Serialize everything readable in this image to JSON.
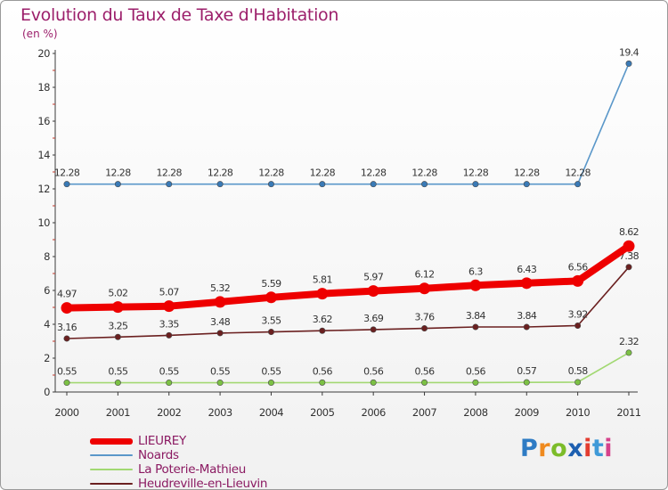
{
  "title": "Evolution du Taux de Taxe d'Habitation",
  "subtitle": "(en %)",
  "logo": "Proxiti",
  "chart_data": {
    "type": "line",
    "title": "Evolution du Taux de Taxe d'Habitation",
    "ylabel": "(en %)",
    "xlabel": "",
    "ylim": [
      0,
      20
    ],
    "yticks": [
      "0",
      "2",
      "4",
      "6",
      "8",
      "10",
      "12",
      "14",
      "16",
      "18",
      "20"
    ],
    "categories": [
      "2000",
      "2001",
      "2002",
      "2003",
      "2004",
      "2005",
      "2006",
      "2007",
      "2008",
      "2009",
      "2010",
      "2011"
    ],
    "grid": false,
    "legend_position": "bottom-left",
    "series": [
      {
        "name": "Noards",
        "color": "#5a97c9",
        "marker": "#3a7ab6",
        "values": [
          12.28,
          12.28,
          12.28,
          12.28,
          12.28,
          12.28,
          12.28,
          12.28,
          12.28,
          12.28,
          12.28,
          19.4
        ],
        "labels": [
          "12.28",
          "12.28",
          "12.28",
          "12.28",
          "12.28",
          "12.28",
          "12.28",
          "12.28",
          "12.28",
          "12.28",
          "12.28",
          "19.4"
        ]
      },
      {
        "name": "LIEUREY",
        "color": "#ee0000",
        "marker": "#ee0000",
        "values": [
          4.97,
          5.02,
          5.07,
          5.32,
          5.59,
          5.81,
          5.97,
          6.12,
          6.3,
          6.43,
          6.56,
          8.62
        ],
        "labels": [
          "4.97",
          "5.02",
          "5.07",
          "5.32",
          "5.59",
          "5.81",
          "5.97",
          "6.12",
          "6.3",
          "6.43",
          "6.56",
          "8.62"
        ]
      },
      {
        "name": "Heudreville-en-Lieuvin",
        "color": "#6b2020",
        "marker": "#6b2020",
        "values": [
          3.16,
          3.25,
          3.35,
          3.48,
          3.55,
          3.62,
          3.69,
          3.76,
          3.84,
          3.84,
          3.92,
          7.38
        ],
        "labels": [
          "3.16",
          "3.25",
          "3.35",
          "3.48",
          "3.55",
          "3.62",
          "3.69",
          "3.76",
          "3.84",
          "3.84",
          "3.92",
          "7.38"
        ]
      },
      {
        "name": "La Poterie-Mathieu",
        "color": "#a2d872",
        "marker": "#7cc144",
        "values": [
          0.55,
          0.55,
          0.55,
          0.55,
          0.55,
          0.56,
          0.56,
          0.56,
          0.56,
          0.57,
          0.58,
          2.32
        ],
        "labels": [
          "0.55",
          "0.55",
          "0.55",
          "0.55",
          "0.55",
          "0.56",
          "0.56",
          "0.56",
          "0.56",
          "0.57",
          "0.58",
          "2.32"
        ]
      }
    ]
  },
  "legend": [
    {
      "label": "LIEUREY",
      "color": "#ee0000"
    },
    {
      "label": "Noards",
      "color": "#5a97c9"
    },
    {
      "label": "La Poterie-Mathieu",
      "color": "#a2d872"
    },
    {
      "label": "Heudreville-en-Lieuvin",
      "color": "#6b2020"
    }
  ]
}
